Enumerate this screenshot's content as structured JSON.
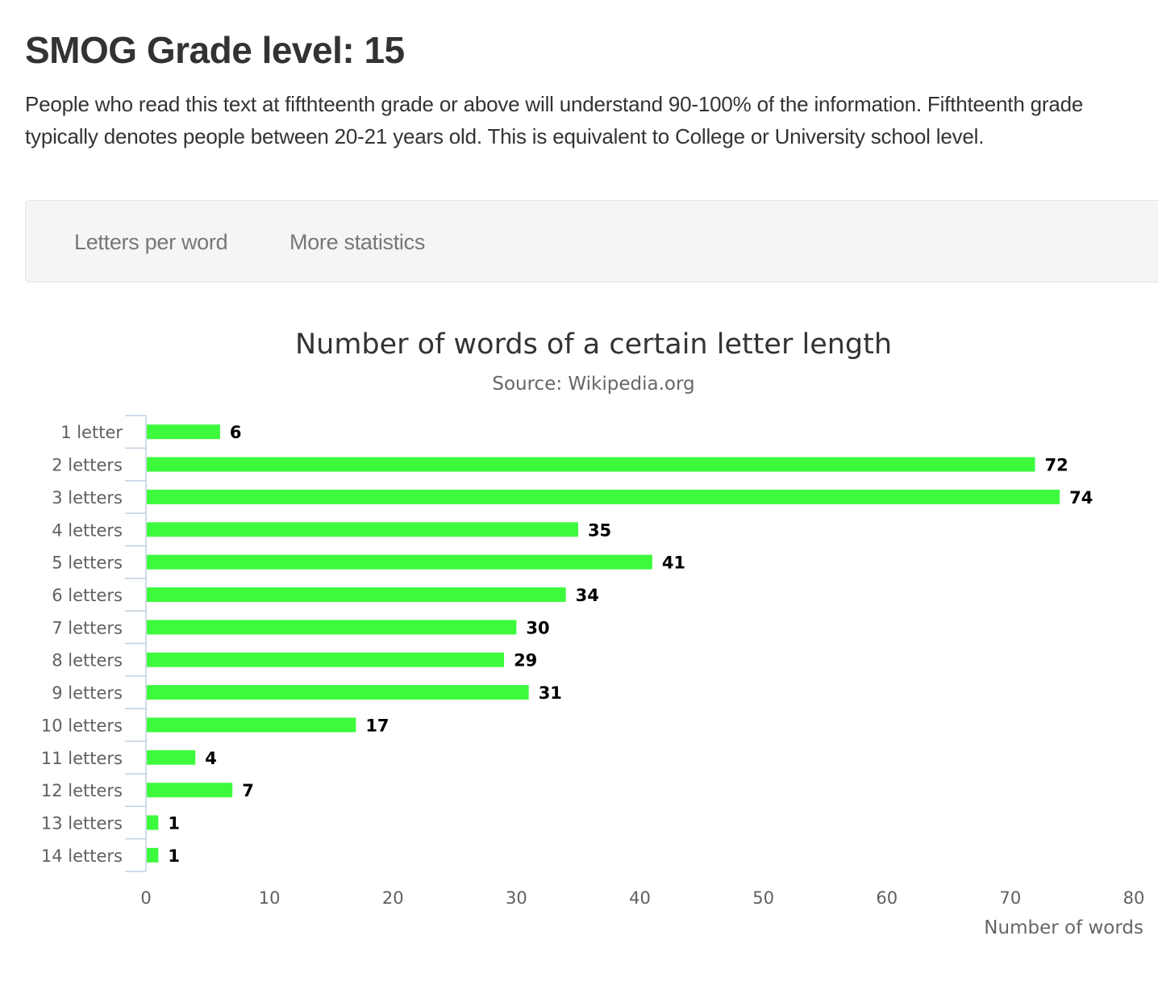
{
  "page": {
    "heading": "SMOG Grade level: 15",
    "description": "People who read this text at fifthteenth grade or above will understand 90-100% of the information. Fifthteenth grade typically denotes people between 20-21 years old. This is equivalent to College or University school level."
  },
  "tabs": [
    {
      "label": "Letters per word"
    },
    {
      "label": "More statistics"
    }
  ],
  "colors": {
    "bar": "#3dfa3d",
    "axis": "#c0d0e0",
    "background_panel": "#f5f5f5"
  },
  "chart_data": {
    "type": "bar",
    "orientation": "horizontal",
    "title": "Number of words of a certain letter length",
    "subtitle": "Source: Wikipedia.org",
    "xlabel": "Number of words",
    "ylabel": "",
    "categories": [
      "1 letter",
      "2 letters",
      "3 letters",
      "4 letters",
      "5 letters",
      "6 letters",
      "7 letters",
      "8 letters",
      "9 letters",
      "10 letters",
      "11 letters",
      "12 letters",
      "13 letters",
      "14 letters"
    ],
    "values": [
      6,
      72,
      74,
      35,
      41,
      34,
      30,
      29,
      31,
      17,
      4,
      7,
      1,
      1
    ],
    "xlim": [
      0,
      80
    ],
    "xticks": [
      "0",
      "10",
      "20",
      "30",
      "40",
      "50",
      "60",
      "70",
      "80"
    ],
    "data_labels": true,
    "legend": "none",
    "grid": false
  }
}
